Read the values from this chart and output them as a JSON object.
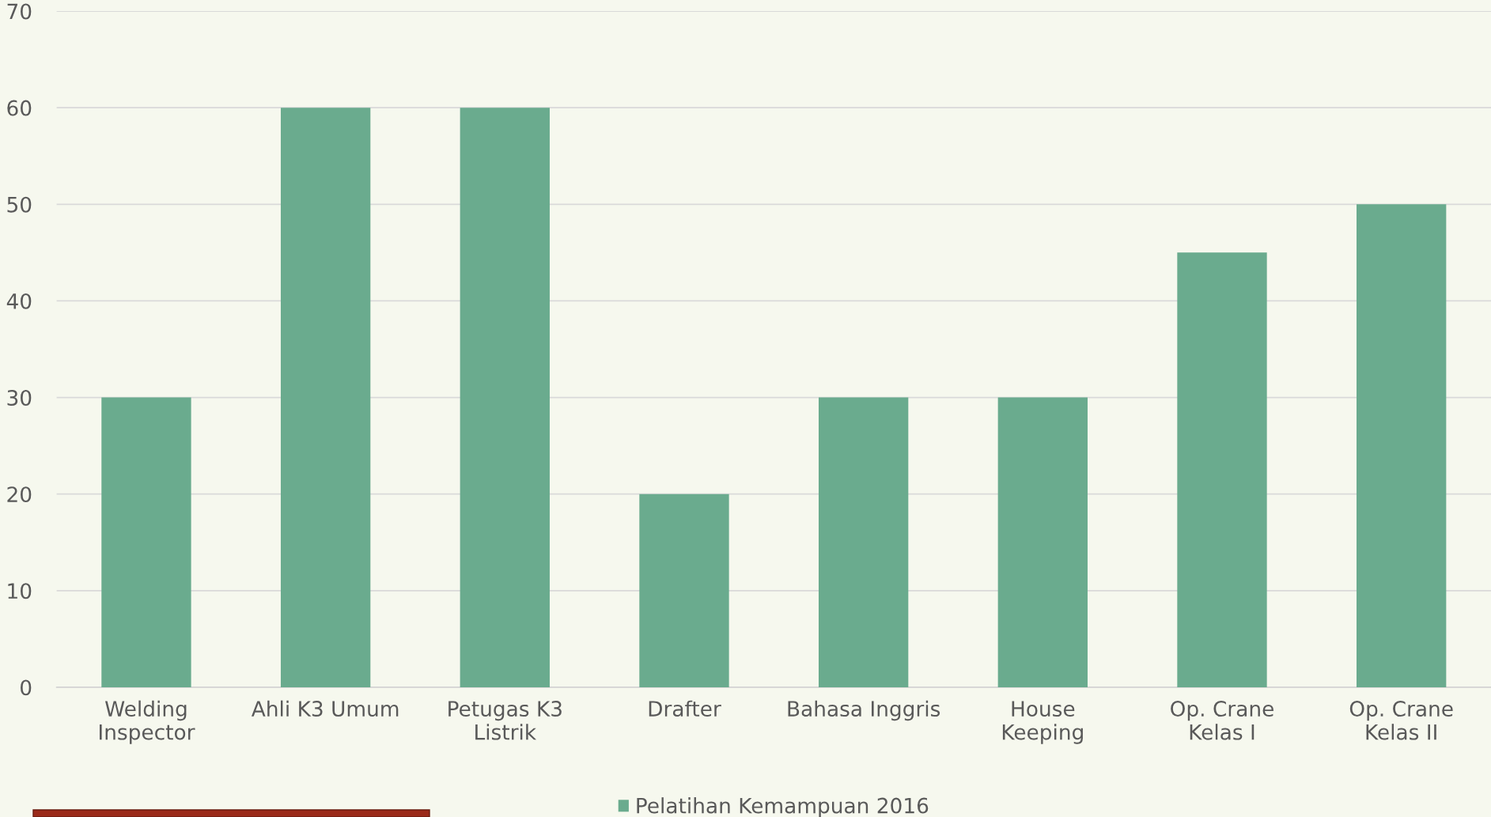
{
  "chart_data": {
    "type": "bar",
    "categories": [
      "Welding\nInspector",
      "Ahli K3 Umum",
      "Petugas K3\nListrik",
      "Drafter",
      "Bahasa Inggris",
      "House\nKeeping",
      "Op. Crane\nKelas I",
      "Op. Crane\nKelas II"
    ],
    "series": [
      {
        "name": "Pelatihan Kemampuan 2016",
        "color": "#6aab8e",
        "values": [
          30,
          60,
          60,
          20,
          30,
          30,
          45,
          50
        ]
      }
    ],
    "ylim": [
      0,
      70
    ],
    "yticks": [
      0,
      10,
      20,
      30,
      40,
      50,
      60,
      70
    ],
    "grid": "y",
    "legend": "bottom"
  }
}
